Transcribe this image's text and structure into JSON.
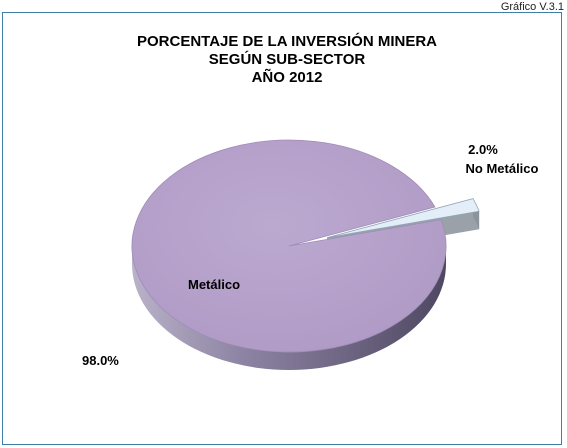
{
  "figure_caption": "Gráfico V.3.1",
  "chart_data": {
    "type": "pie",
    "title_lines": [
      "PORCENTAJE DE LA INVERSIÓN MINERA",
      "SEGÚN SUB-SECTOR",
      "AÑO 2012"
    ],
    "slices": [
      {
        "label": "Metálico",
        "value": 98.0,
        "value_label": "98.0%",
        "color": "#b8a4cc",
        "side_color": "#6e6486"
      },
      {
        "label": "No Metálico",
        "value": 2.0,
        "value_label": "2.0%",
        "color": "#e4eef8",
        "side_color": "#8c939a",
        "exploded": true
      }
    ],
    "legend": "none"
  }
}
